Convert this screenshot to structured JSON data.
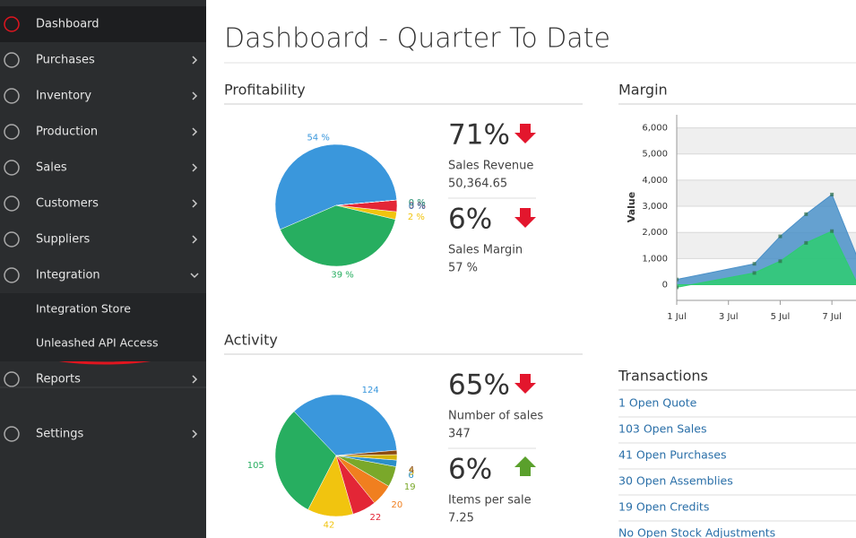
{
  "sidebar": {
    "items": [
      {
        "label": "Dashboard",
        "expandable": false,
        "active": true
      },
      {
        "label": "Purchases",
        "expandable": true
      },
      {
        "label": "Inventory",
        "expandable": true
      },
      {
        "label": "Production",
        "expandable": true
      },
      {
        "label": "Sales",
        "expandable": true
      },
      {
        "label": "Customers",
        "expandable": true
      },
      {
        "label": "Suppliers",
        "expandable": true
      },
      {
        "label": "Integration",
        "expandable": true,
        "expanded": true,
        "subitems": [
          "Integration Store",
          "Unleashed API Access"
        ]
      },
      {
        "label": "Reports",
        "expandable": true
      },
      {
        "label": "Settings",
        "expandable": true
      }
    ]
  },
  "header": {
    "title": "Dashboard - Quarter To Date"
  },
  "profitability": {
    "title": "Profitability",
    "chart": {
      "type": "pie",
      "values": [
        54,
        39,
        2,
        3,
        0,
        0
      ],
      "value_labels": [
        "54 %",
        "39 %",
        "2 %",
        "3 %",
        "0 %",
        "0 %"
      ],
      "colors": [
        "#3a97dc",
        "#27ae60",
        "#f1c40f",
        "#e32636",
        "#1e8c6e",
        "#2a6fa8"
      ]
    },
    "kpis": [
      {
        "value": "71%",
        "label": "Sales Revenue",
        "detail": "50,364.65",
        "trend": "down"
      },
      {
        "value": "6%",
        "label": "Sales Margin",
        "detail": "57 %",
        "trend": "down"
      }
    ]
  },
  "activity": {
    "title": "Activity",
    "chart": {
      "type": "pie",
      "values": [
        124,
        105,
        42,
        22,
        20,
        19,
        6,
        5,
        4
      ],
      "colors": [
        "#3a97dc",
        "#27ae60",
        "#f1c40f",
        "#e32636",
        "#f07f1f",
        "#7aa82a",
        "#2a8fc8",
        "#d4b30a",
        "#8b4a12"
      ]
    },
    "kpis": [
      {
        "value": "65%",
        "label": "Number of sales",
        "detail": "347",
        "trend": "down"
      },
      {
        "value": "6%",
        "label": "Items per sale",
        "detail": "7.25",
        "trend": "up"
      }
    ]
  },
  "margin": {
    "title": "Margin",
    "chart": {
      "type": "area",
      "ylabel": "Value",
      "x": [
        1,
        4,
        5,
        6,
        7,
        8
      ],
      "series": [
        {
          "color": "#4a90c8",
          "values": [
            200,
            800,
            1850,
            2700,
            3450,
            1000
          ]
        },
        {
          "color": "#2ecc71",
          "values": [
            -100,
            450,
            900,
            1600,
            2050,
            0
          ]
        }
      ],
      "xlim": [
        1,
        8
      ],
      "ylim": [
        -600,
        6500
      ],
      "xticks": [
        {
          "value": 1,
          "label": "1 Jul"
        },
        {
          "value": 3,
          "label": "3 Jul"
        },
        {
          "value": 5,
          "label": "5 Jul"
        },
        {
          "value": 7,
          "label": "7 Jul"
        }
      ],
      "yticks": [
        0,
        {
          "value": 1000,
          "label": "1,000"
        },
        {
          "value": 2000,
          "label": "2,000"
        },
        {
          "value": 3000,
          "label": "3,000"
        },
        {
          "value": 4000,
          "label": "4,000"
        },
        {
          "value": 5000,
          "label": "5,000"
        },
        {
          "value": 6000,
          "label": "6,000"
        }
      ],
      "grid": true
    }
  },
  "transactions": {
    "title": "Transactions",
    "items": [
      "1 Open Quote",
      "103 Open Sales",
      "41 Open Purchases",
      "30 Open Assemblies",
      "19 Open Credits",
      "No Open Stock Adjustments"
    ]
  }
}
